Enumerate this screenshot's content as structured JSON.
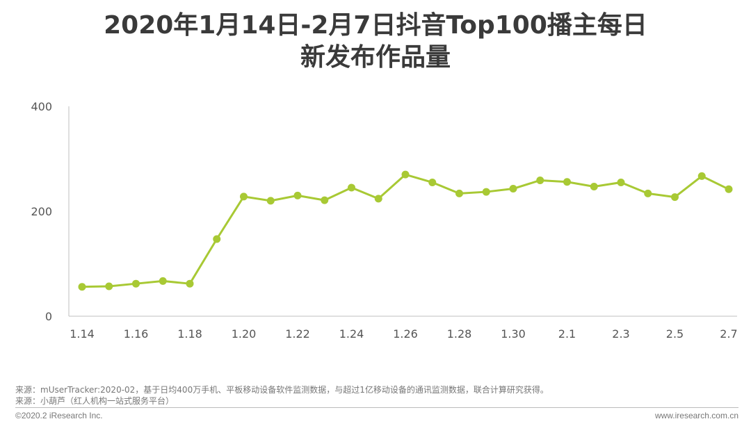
{
  "chart_data": {
    "type": "line",
    "title_lines": [
      "2020年1月14日-2月7日抖音Top100播主每日",
      "新发布作品量"
    ],
    "categories": [
      "1.14",
      "1.15",
      "1.16",
      "1.17",
      "1.18",
      "1.19",
      "1.20",
      "1.21",
      "1.22",
      "1.23",
      "1.24",
      "1.25",
      "1.26",
      "1.27",
      "1.28",
      "1.29",
      "1.30",
      "1.31",
      "2.1",
      "2.2",
      "2.3",
      "2.4",
      "2.5",
      "2.6",
      "2.7"
    ],
    "tick_labels": [
      "1.14",
      "1.16",
      "1.18",
      "1.20",
      "1.22",
      "1.24",
      "1.26",
      "1.28",
      "1.30",
      "2.1",
      "2.3",
      "2.5",
      "2.7"
    ],
    "series": [
      {
        "values": [
          56,
          57,
          62,
          67,
          62,
          147,
          228,
          220,
          230,
          221,
          245,
          224,
          270,
          255,
          234,
          237,
          243,
          259,
          256,
          247,
          255,
          234,
          227,
          267,
          242
        ]
      }
    ],
    "ylim": [
      0,
      400
    ],
    "yticks": [
      0,
      200,
      400
    ],
    "grid": false,
    "line_color": "#a8c934"
  },
  "footer": {
    "source1": "来源：mUserTracker:2020-02，基于日均400万手机、平板移动设备软件监测数据，与超过1亿移动设备的通讯监测数据，联合计算研究获得。",
    "source2": "来源：小葫芦（红人机构一站式服务平台）",
    "copyright": "©2020.2 iResearch Inc.",
    "site": "www.iresearch.com.cn"
  }
}
